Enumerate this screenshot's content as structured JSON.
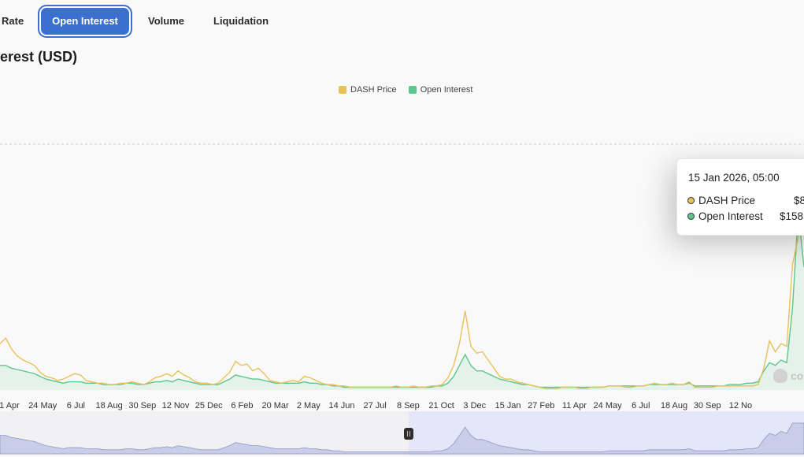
{
  "tabs": [
    {
      "label": "Rate",
      "active": false
    },
    {
      "label": "Open Interest",
      "active": true
    },
    {
      "label": "Volume",
      "active": false
    },
    {
      "label": "Liquidation",
      "active": false
    }
  ],
  "title": "erest (USD)",
  "legend": [
    {
      "label": "DASH Price",
      "color": "#e8c15a"
    },
    {
      "label": "Open Interest",
      "color": "#5cc78b"
    }
  ],
  "tooltip": {
    "date": "15 Jan 2026, 05:00",
    "rows": [
      {
        "label": "DASH Price",
        "value": "$8",
        "dot_color": "#e8c15a"
      },
      {
        "label": "Open Interest",
        "value": "$158.",
        "dot_color": "#5cc78b"
      }
    ]
  },
  "watermark": {
    "text": "co",
    "icon": "coinglass-logo-icon"
  },
  "chart_data": {
    "type": "line",
    "title": "",
    "xlabel": "",
    "ylabel": "",
    "grid": false,
    "legend_position": "top",
    "x_tick_labels": [
      "1 Apr",
      "24 May",
      "6 Jul",
      "18 Aug",
      "30 Sep",
      "12 Nov",
      "25 Dec",
      "6 Feb",
      "20 Mar",
      "2 May",
      "14 Jun",
      "27 Jul",
      "8 Sep",
      "21 Oct",
      "3 Dec",
      "15 Jan",
      "27 Feb",
      "11 Apr",
      "24 May",
      "6 Jul",
      "18 Aug",
      "30 Sep",
      "12 No"
    ],
    "series": [
      {
        "name": "DASH Price",
        "color": "#e8c15a",
        "values": [
          34,
          38,
          30,
          25,
          22,
          20,
          18,
          13,
          10,
          9,
          7,
          8,
          10,
          12,
          11,
          7,
          6,
          5,
          5,
          4,
          4,
          5,
          5,
          6,
          5,
          4,
          6,
          9,
          10,
          12,
          10,
          14,
          11,
          9,
          6,
          5,
          5,
          4,
          5,
          9,
          13,
          21,
          18,
          19,
          14,
          16,
          12,
          7,
          6,
          5,
          6,
          7,
          6,
          10,
          9,
          7,
          5,
          4,
          4,
          3,
          3,
          2,
          2,
          2,
          2,
          2,
          2,
          2,
          2,
          3,
          2,
          2,
          3,
          2,
          2,
          3,
          3,
          4,
          9,
          18,
          34,
          58,
          32,
          27,
          28,
          22,
          16,
          10,
          8,
          8,
          6,
          5,
          4,
          3,
          2,
          1,
          1,
          1,
          2,
          2,
          2,
          1,
          1,
          2,
          2,
          2,
          3,
          3,
          3,
          2,
          2,
          3,
          3,
          4,
          5,
          4,
          4,
          5,
          4,
          4,
          6,
          2,
          2,
          2,
          2,
          3,
          3,
          3,
          3,
          3,
          3,
          3,
          4,
          16,
          36,
          28,
          34,
          32,
          92,
          112,
          140
        ],
        "note": "values are relative to an unlabelled y axis"
      },
      {
        "name": "Open Interest",
        "color": "#5cc78b",
        "values": [
          18,
          18,
          16,
          15,
          14,
          13,
          12,
          10,
          8,
          7,
          6,
          5,
          6,
          6,
          6,
          5,
          5,
          5,
          4,
          4,
          4,
          4,
          5,
          5,
          4,
          4,
          5,
          6,
          6,
          7,
          6,
          8,
          7,
          6,
          5,
          4,
          4,
          4,
          4,
          6,
          8,
          11,
          10,
          9,
          8,
          8,
          7,
          6,
          5,
          5,
          5,
          5,
          5,
          6,
          5,
          5,
          4,
          4,
          3,
          3,
          2,
          2,
          2,
          2,
          2,
          2,
          2,
          2,
          2,
          2,
          2,
          2,
          2,
          2,
          2,
          2,
          3,
          3,
          5,
          10,
          18,
          26,
          18,
          14,
          14,
          12,
          10,
          8,
          7,
          6,
          5,
          4,
          4,
          3,
          2,
          2,
          2,
          2,
          2,
          2,
          2,
          2,
          2,
          2,
          2,
          2,
          3,
          3,
          3,
          3,
          3,
          3,
          3,
          4,
          4,
          4,
          4,
          4,
          4,
          4,
          5,
          3,
          3,
          3,
          3,
          3,
          3,
          4,
          4,
          4,
          5,
          5,
          6,
          14,
          20,
          18,
          22,
          20,
          60,
          130,
          90
        ]
      }
    ]
  }
}
